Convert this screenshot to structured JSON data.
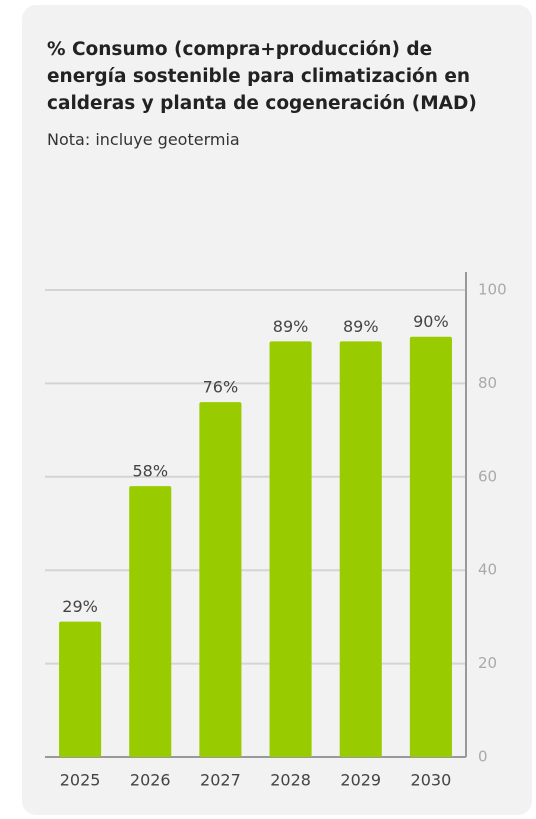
{
  "chart_data": {
    "type": "bar",
    "title": "% Consumo (compra+producción) de energía sostenible para climatización en calderas y planta de cogeneración (MAD)",
    "subtitle": "Nota: incluye geotermia",
    "categories": [
      "2025",
      "2026",
      "2027",
      "2028",
      "2029",
      "2030"
    ],
    "values": [
      29,
      58,
      76,
      89,
      89,
      90
    ],
    "value_labels": [
      "29%",
      "58%",
      "76%",
      "89%",
      "89%",
      "90%"
    ],
    "color": "#99cc00",
    "ylim": [
      0,
      100
    ],
    "yticks": [
      0,
      20,
      40,
      60,
      80,
      100
    ],
    "grid": true,
    "y_axis_side": "right"
  }
}
